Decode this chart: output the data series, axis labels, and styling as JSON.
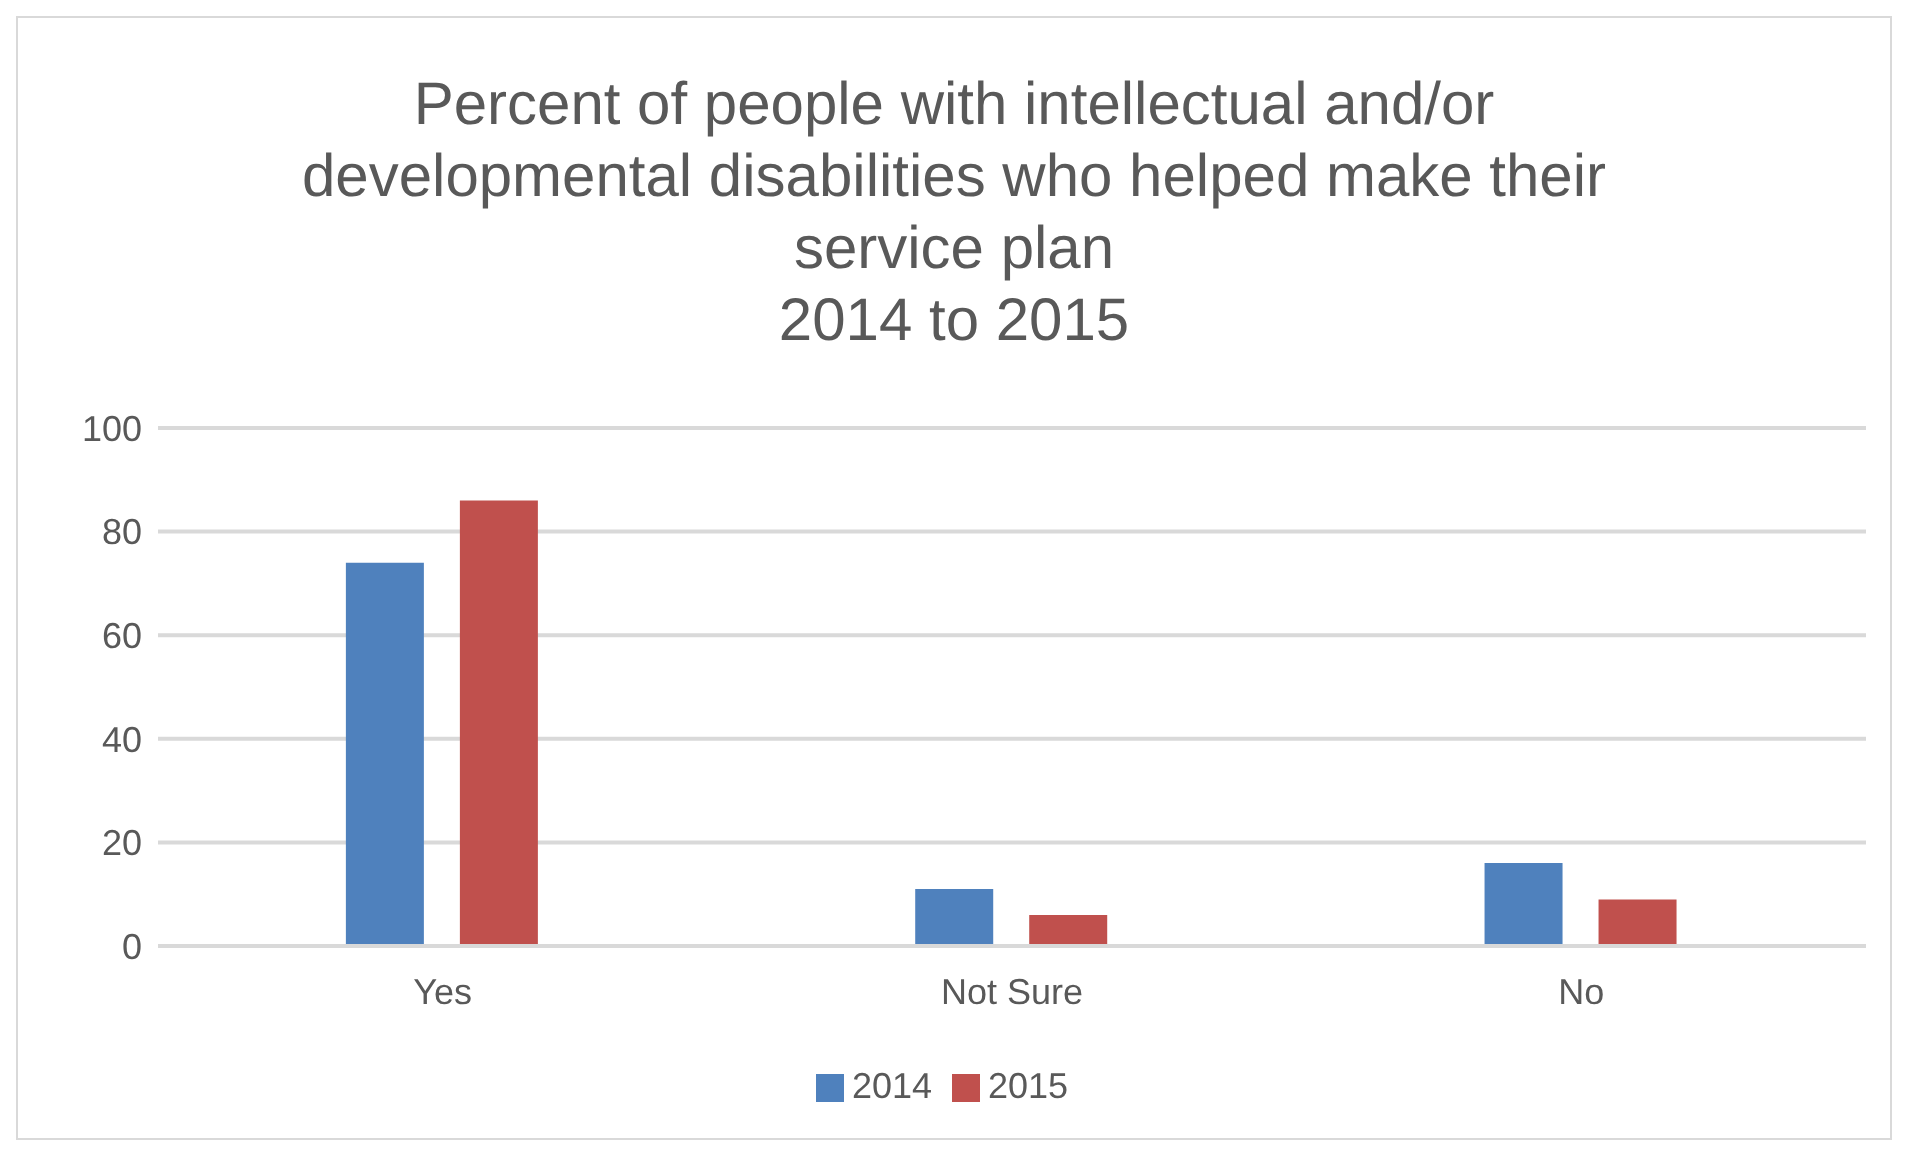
{
  "chart_data": {
    "type": "bar",
    "title": "Percent of people with intellectual and/or developmental disabilities who helped make their service plan\n2014 to 2015",
    "categories": [
      "Yes",
      "Not Sure",
      "No"
    ],
    "series": [
      {
        "name": "2014",
        "color": "#4f81bd",
        "values": [
          74,
          11,
          16
        ]
      },
      {
        "name": "2015",
        "color": "#c0504d",
        "values": [
          86,
          6,
          9
        ]
      }
    ],
    "ylim": [
      0,
      100
    ],
    "yticks": [
      0,
      20,
      40,
      60,
      80,
      100
    ],
    "grid": "y",
    "legend": "bottom"
  }
}
